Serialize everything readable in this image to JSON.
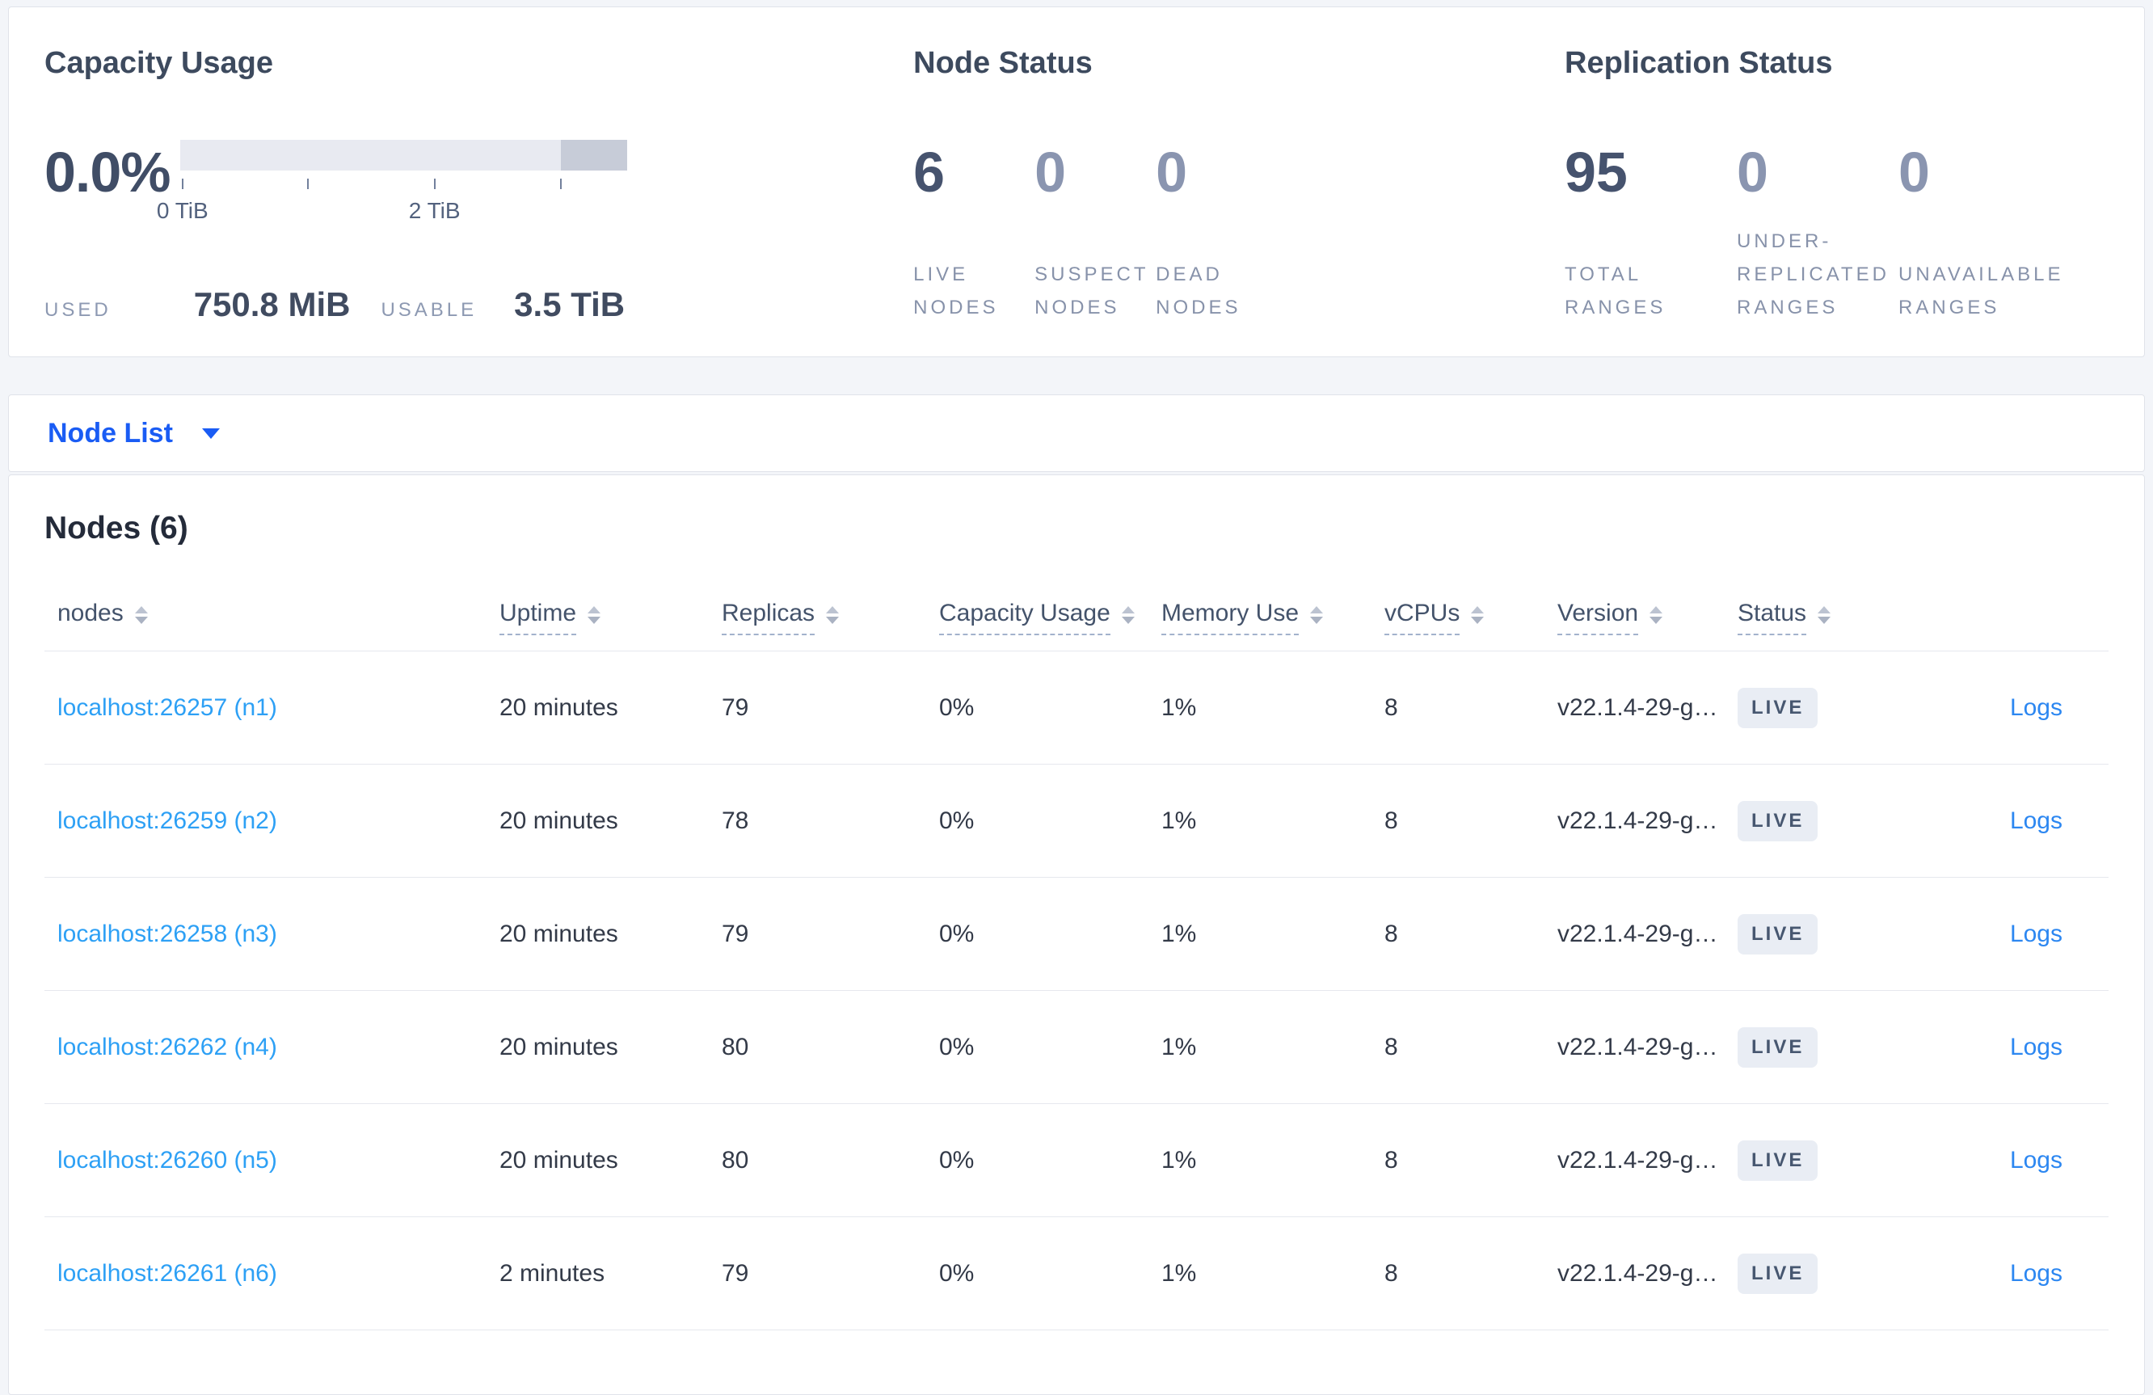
{
  "summary": {
    "capacity": {
      "title": "Capacity Usage",
      "percent": "0.0%",
      "bar": {
        "dark_segment_start_pct": 85.2,
        "ticks": [
          {
            "pos_pct": 0.5,
            "label": "0 TiB"
          },
          {
            "pos_pct": 28.6,
            "label": ""
          },
          {
            "pos_pct": 56.9,
            "label": "2 TiB"
          },
          {
            "pos_pct": 85.2,
            "label": ""
          }
        ]
      },
      "used_label": "USED",
      "used_value": "750.8 MiB",
      "usable_label": "USABLE",
      "usable_value": "3.5 TiB"
    },
    "node_status": {
      "title": "Node Status",
      "stats": [
        {
          "value": "6",
          "label": "LIVE NODES",
          "muted": false
        },
        {
          "value": "0",
          "label": "SUSPECT NODES",
          "muted": true
        },
        {
          "value": "0",
          "label": "DEAD NODES",
          "muted": true
        }
      ]
    },
    "replication": {
      "title": "Replication Status",
      "stats": [
        {
          "value": "95",
          "label": "TOTAL RANGES",
          "muted": false
        },
        {
          "value": "0",
          "label": "UNDER-REPLICATED RANGES",
          "muted": true
        },
        {
          "value": "0",
          "label": "UNAVAILABLE RANGES",
          "muted": true
        }
      ]
    }
  },
  "view_selector": {
    "label": "Node List"
  },
  "table": {
    "heading": "Nodes (6)",
    "columns": [
      {
        "label": "nodes",
        "dashed": false
      },
      {
        "label": "Uptime",
        "dashed": true
      },
      {
        "label": "Replicas",
        "dashed": true
      },
      {
        "label": "Capacity Usage",
        "dashed": true
      },
      {
        "label": "Memory Use",
        "dashed": true
      },
      {
        "label": "vCPUs",
        "dashed": true
      },
      {
        "label": "Version",
        "dashed": true
      },
      {
        "label": "Status",
        "dashed": true
      }
    ],
    "rows": [
      {
        "node": "localhost:26257 (n1)",
        "uptime": "20 minutes",
        "replicas": "79",
        "capacity": "0%",
        "memory": "1%",
        "vcpus": "8",
        "version": "v22.1.4-29-g…",
        "status": "LIVE",
        "logs": "Logs"
      },
      {
        "node": "localhost:26259 (n2)",
        "uptime": "20 minutes",
        "replicas": "78",
        "capacity": "0%",
        "memory": "1%",
        "vcpus": "8",
        "version": "v22.1.4-29-g…",
        "status": "LIVE",
        "logs": "Logs"
      },
      {
        "node": "localhost:26258 (n3)",
        "uptime": "20 minutes",
        "replicas": "79",
        "capacity": "0%",
        "memory": "1%",
        "vcpus": "8",
        "version": "v22.1.4-29-g…",
        "status": "LIVE",
        "logs": "Logs"
      },
      {
        "node": "localhost:26262 (n4)",
        "uptime": "20 minutes",
        "replicas": "80",
        "capacity": "0%",
        "memory": "1%",
        "vcpus": "8",
        "version": "v22.1.4-29-g…",
        "status": "LIVE",
        "logs": "Logs"
      },
      {
        "node": "localhost:26260 (n5)",
        "uptime": "20 minutes",
        "replicas": "80",
        "capacity": "0%",
        "memory": "1%",
        "vcpus": "8",
        "version": "v22.1.4-29-g…",
        "status": "LIVE",
        "logs": "Logs"
      },
      {
        "node": "localhost:26261 (n6)",
        "uptime": "2 minutes",
        "replicas": "79",
        "capacity": "0%",
        "memory": "1%",
        "vcpus": "8",
        "version": "v22.1.4-29-g…",
        "status": "LIVE",
        "logs": "Logs"
      }
    ]
  },
  "colors": {
    "accent_blue": "#1a5cf4",
    "node_link_blue": "#2da0f5",
    "logs_link_blue": "#2c87f1",
    "badge_bg": "#e9edf4",
    "badge_text": "#475770",
    "bar_light": "#e8eaf1",
    "bar_dark": "#c7ccd8"
  }
}
